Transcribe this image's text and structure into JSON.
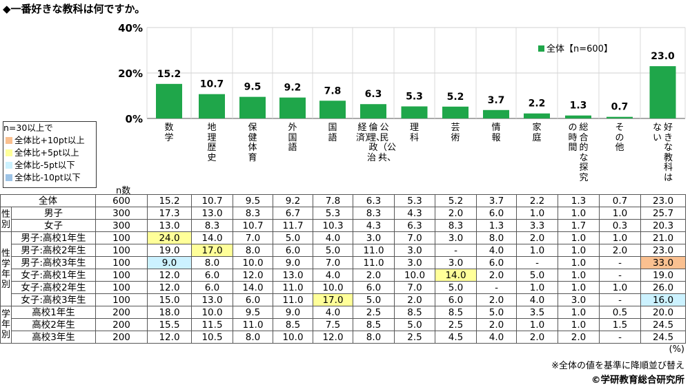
{
  "title": "◆一番好きな教科は何ですか。",
  "colors": {
    "bar": "#1fa64a",
    "plus10": "#fac090",
    "plus5": "#ffff99",
    "minus5": "#ccf2ff",
    "minus10": "#9dc3e6"
  },
  "chart_data": {
    "type": "bar",
    "categories": [
      "数学",
      "地理歴史",
      "保健体育",
      "外国語",
      "国語",
      "公民（公共、倫理、政治・経済）",
      "理科",
      "芸術",
      "情報",
      "家庭",
      "総合的な探究の時間",
      "その他",
      "好きな教科はない"
    ],
    "series": [
      {
        "name": "全体【n=600】",
        "values": [
          15.2,
          10.7,
          9.5,
          9.2,
          7.8,
          6.3,
          5.3,
          5.2,
          3.7,
          2.2,
          1.3,
          0.7,
          23.0
        ]
      }
    ],
    "y_ticks": [
      "40%",
      "20%",
      "0%"
    ],
    "ylim": [
      0,
      40
    ],
    "legend": "top-right"
  },
  "legend_box": {
    "title": "n=30以上で",
    "items": [
      {
        "label": "全体比+10pt以上",
        "color": "#fac090"
      },
      {
        "label": "全体比+5pt以上",
        "color": "#ffff99"
      },
      {
        "label": "全体比-5pt以下",
        "color": "#ccf2ff"
      },
      {
        "label": "全体比-10pt以下",
        "color": "#9dc3e6"
      }
    ]
  },
  "table": {
    "n_header": "n数",
    "rows": [
      {
        "group": "",
        "label": "全体",
        "n": "600",
        "values": [
          "15.2",
          "10.7",
          "9.5",
          "9.2",
          "7.8",
          "6.3",
          "5.3",
          "5.2",
          "3.7",
          "2.2",
          "1.3",
          "0.7",
          "23.0"
        ],
        "hl": {}
      },
      {
        "group": "性別",
        "span": 2,
        "label": "男子",
        "n": "300",
        "values": [
          "17.3",
          "13.0",
          "8.3",
          "6.7",
          "5.3",
          "8.3",
          "4.3",
          "2.0",
          "6.0",
          "1.0",
          "1.0",
          "1.0",
          "25.7"
        ],
        "hl": {}
      },
      {
        "label": "女子",
        "n": "300",
        "values": [
          "13.0",
          "8.3",
          "10.7",
          "11.7",
          "10.3",
          "4.3",
          "6.3",
          "8.3",
          "1.3",
          "3.3",
          "1.7",
          "0.3",
          "20.3"
        ],
        "hl": {}
      },
      {
        "group": "性学年別",
        "span": 6,
        "label": "男子:高校1年生",
        "n": "100",
        "values": [
          "24.0",
          "14.0",
          "7.0",
          "5.0",
          "4.0",
          "3.0",
          "7.0",
          "3.0",
          "8.0",
          "2.0",
          "1.0",
          "1.0",
          "21.0"
        ],
        "hl": {
          "0": "ye"
        }
      },
      {
        "label": "男子:高校2年生",
        "n": "100",
        "values": [
          "19.0",
          "17.0",
          "8.0",
          "6.0",
          "5.0",
          "11.0",
          "3.0",
          "-",
          "4.0",
          "1.0",
          "1.0",
          "2.0",
          "23.0"
        ],
        "hl": {
          "1": "ye"
        }
      },
      {
        "label": "男子:高校3年生",
        "n": "100",
        "values": [
          "9.0",
          "8.0",
          "10.0",
          "9.0",
          "7.0",
          "11.0",
          "3.0",
          "3.0",
          "6.0",
          "-",
          "1.0",
          "-",
          "33.0"
        ],
        "hl": {
          "0": "cy",
          "12": "or"
        }
      },
      {
        "label": "女子:高校1年生",
        "n": "100",
        "values": [
          "12.0",
          "6.0",
          "12.0",
          "13.0",
          "4.0",
          "2.0",
          "10.0",
          "14.0",
          "2.0",
          "5.0",
          "1.0",
          "-",
          "19.0"
        ],
        "hl": {
          "7": "ye"
        }
      },
      {
        "label": "女子:高校2年生",
        "n": "100",
        "values": [
          "12.0",
          "6.0",
          "14.0",
          "11.0",
          "10.0",
          "6.0",
          "7.0",
          "5.0",
          "-",
          "1.0",
          "1.0",
          "1.0",
          "26.0"
        ],
        "hl": {}
      },
      {
        "label": "女子:高校3年生",
        "n": "100",
        "values": [
          "15.0",
          "13.0",
          "6.0",
          "11.0",
          "17.0",
          "5.0",
          "2.0",
          "6.0",
          "2.0",
          "4.0",
          "3.0",
          "-",
          "16.0"
        ],
        "hl": {
          "4": "ye",
          "12": "cy"
        }
      },
      {
        "group": "学年別",
        "span": 3,
        "label": "高校1年生",
        "n": "200",
        "values": [
          "18.0",
          "10.0",
          "9.5",
          "9.0",
          "4.0",
          "2.5",
          "8.5",
          "8.5",
          "5.0",
          "3.5",
          "1.0",
          "0.5",
          "20.0"
        ],
        "hl": {}
      },
      {
        "label": "高校2年生",
        "n": "200",
        "values": [
          "15.5",
          "11.5",
          "11.0",
          "8.5",
          "7.5",
          "8.5",
          "5.0",
          "2.5",
          "2.0",
          "1.0",
          "1.0",
          "1.5",
          "24.5"
        ],
        "hl": {}
      },
      {
        "label": "高校3年生",
        "n": "200",
        "values": [
          "12.0",
          "10.5",
          "8.0",
          "10.0",
          "12.0",
          "8.0",
          "2.5",
          "4.5",
          "4.0",
          "2.0",
          "2.0",
          "-",
          "24.5"
        ],
        "hl": {}
      }
    ]
  },
  "percent_unit": "(%)",
  "note": "※全体の値を基準に降順並び替え",
  "copyright": "©学研教育総合研究所"
}
